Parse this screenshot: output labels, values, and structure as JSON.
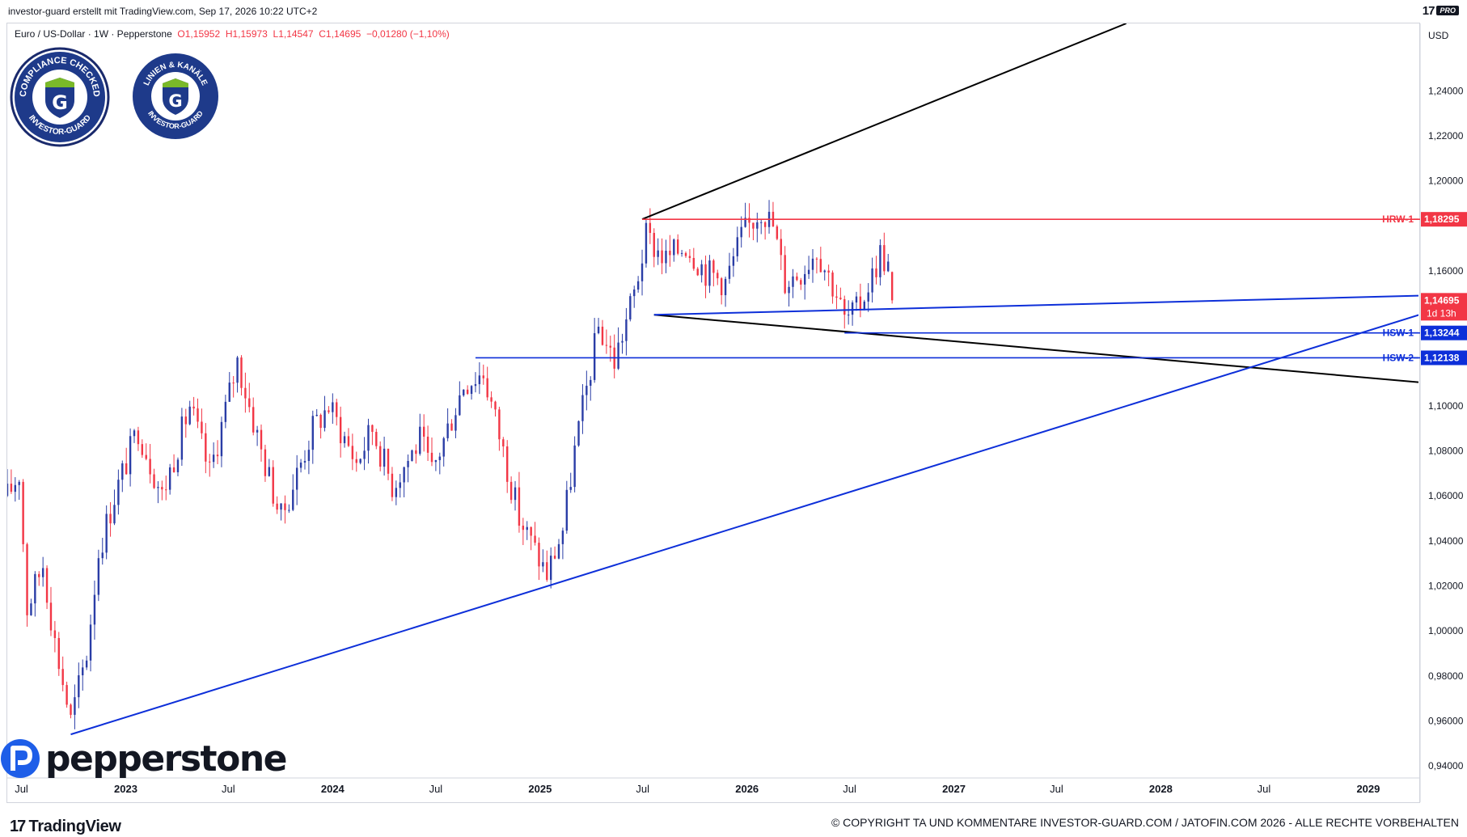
{
  "header": {
    "credit": "investor-guard erstellt mit TradingView.com, Sep 17, 2026 10:22 UTC+2",
    "tv_logo": "17",
    "pro_label": "PRO"
  },
  "legend": {
    "symbol": "Euro / US-Dollar · 1W · Pepperstone",
    "open": "O1,15952",
    "high": "H1,15973",
    "low": "L1,14547",
    "close": "C1,14695",
    "change": "−0,01280 (−1,10%)"
  },
  "badges": [
    {
      "top_text": "COMPLIANCE CHECKED",
      "bottom_text": "INVESTOR-GUARD",
      "icon": "shield-g-icon"
    },
    {
      "top_text": "LINIEN & KANÄLE",
      "bottom_text": "INVESTOR-GUARD",
      "icon": "shield-g-icon"
    }
  ],
  "colors": {
    "up": "#2a3da6",
    "down": "#f23645",
    "support": "#0d2fd9",
    "resistance": "#f23645",
    "trend_black": "#000000",
    "price_tag": "#f23645"
  },
  "chart_data": {
    "type": "candlestick",
    "symbol": "EURUSD",
    "interval": "1W",
    "currency_label": "USD",
    "y_ticks": [
      "1,24000",
      "1,22000",
      "1,20000",
      "1,16000",
      "1,10000",
      "1,08000",
      "1,06000",
      "1,04000",
      "1,02000",
      "1,00000",
      "0,98000",
      "0,96000",
      "0,94000"
    ],
    "y_tick_values": [
      1.24,
      1.22,
      1.2,
      1.16,
      1.1,
      1.08,
      1.06,
      1.04,
      1.02,
      1.0,
      0.98,
      0.96,
      0.94
    ],
    "ylim": [
      0.935,
      1.27
    ],
    "x_ticks": [
      "Jul",
      "2023",
      "Jul",
      "2024",
      "Jul",
      "2025",
      "Jul",
      "2026",
      "Jul",
      "2027",
      "Jul",
      "2028",
      "Jul",
      "2029"
    ],
    "x_tick_dates": [
      "2022-07-01",
      "2023-01-01",
      "2023-07-01",
      "2024-01-01",
      "2024-07-01",
      "2025-01-01",
      "2025-07-01",
      "2026-01-01",
      "2026-07-01",
      "2027-01-01",
      "2027-07-01",
      "2028-01-01",
      "2028-07-01",
      "2029-01-01"
    ],
    "xlim": [
      "2022-06-06",
      "2029-04-01"
    ],
    "price_path": [
      [
        "2022-06-06",
        1.06
      ],
      [
        "2022-06-27",
        1.07
      ],
      [
        "2022-07-11",
        1.01
      ],
      [
        "2022-08-08",
        1.03
      ],
      [
        "2022-08-29",
        0.995
      ],
      [
        "2022-09-26",
        0.96
      ],
      [
        "2022-10-24",
        0.99
      ],
      [
        "2022-11-14",
        1.035
      ],
      [
        "2022-12-12",
        1.06
      ],
      [
        "2023-01-23",
        1.09
      ],
      [
        "2023-03-06",
        1.06
      ],
      [
        "2023-04-24",
        1.1
      ],
      [
        "2023-05-29",
        1.07
      ],
      [
        "2023-07-17",
        1.12
      ],
      [
        "2023-08-28",
        1.08
      ],
      [
        "2023-10-02",
        1.05
      ],
      [
        "2023-11-27",
        1.09
      ],
      [
        "2023-12-25",
        1.1
      ],
      [
        "2024-02-12",
        1.075
      ],
      [
        "2024-03-11",
        1.09
      ],
      [
        "2024-04-15",
        1.065
      ],
      [
        "2024-06-03",
        1.085
      ],
      [
        "2024-06-24",
        1.07
      ],
      [
        "2024-08-19",
        1.11
      ],
      [
        "2024-09-23",
        1.115
      ],
      [
        "2024-10-28",
        1.08
      ],
      [
        "2024-11-25",
        1.05
      ],
      [
        "2025-01-13",
        1.025
      ],
      [
        "2025-02-10",
        1.045
      ],
      [
        "2025-03-03",
        1.08
      ],
      [
        "2025-04-14",
        1.135
      ],
      [
        "2025-05-12",
        1.12
      ],
      [
        "2025-06-16",
        1.15
      ],
      [
        "2025-07-07",
        1.175
      ],
      [
        "2025-08-11",
        1.165
      ],
      [
        "2025-09-15",
        1.172
      ],
      [
        "2025-10-20",
        1.16
      ],
      [
        "2025-11-24",
        1.155
      ],
      [
        "2025-12-22",
        1.175
      ],
      [
        "2026-01-26",
        1.188
      ],
      [
        "2026-02-16",
        1.18
      ],
      [
        "2026-03-09",
        1.155
      ],
      [
        "2026-04-06",
        1.16
      ],
      [
        "2026-05-04",
        1.17
      ],
      [
        "2026-06-08",
        1.15
      ],
      [
        "2026-06-22",
        1.138
      ],
      [
        "2026-07-13",
        1.142
      ],
      [
        "2026-08-10",
        1.158
      ],
      [
        "2026-08-24",
        1.168
      ],
      [
        "2026-09-07",
        1.162
      ],
      [
        "2026-09-14",
        1.14695
      ]
    ],
    "last_price": {
      "value": 1.14695,
      "label": "1,14695",
      "countdown": "1d 13h"
    },
    "levels": [
      {
        "name": "HRW-1",
        "value": 1.18295,
        "label": "1,18295",
        "kind": "resistance",
        "from": "2025-06-30"
      },
      {
        "name": "HSW-1",
        "value": 1.13244,
        "label": "1,13244",
        "kind": "support",
        "from": "2026-06-22"
      },
      {
        "name": "HSW-2",
        "value": 1.12138,
        "label": "1,12138",
        "kind": "support",
        "from": "2024-09-09"
      }
    ],
    "trendlines": [
      {
        "kind": "black",
        "from": [
          "2025-06-30",
          1.183
        ],
        "to": [
          "2027-11-01",
          1.27
        ]
      },
      {
        "kind": "black",
        "from": [
          "2025-07-21",
          1.1405
        ],
        "to": [
          "2029-04-01",
          1.1105
        ]
      },
      {
        "kind": "support",
        "from": [
          "2025-07-21",
          1.1405
        ],
        "to": [
          "2029-04-01",
          1.149
        ]
      },
      {
        "kind": "support",
        "from": [
          "2022-09-26",
          0.954
        ],
        "to": [
          "2029-04-01",
          1.1405
        ]
      }
    ]
  },
  "footer": {
    "pepperstone": "pepperstone",
    "tradingview": "TradingView",
    "copyright": "© COPYRIGHT TA UND KOMMENTARE INVESTOR-GUARD.COM / JATOFIN.COM 2026 - ALLE RECHTE VORBEHALTEN"
  }
}
